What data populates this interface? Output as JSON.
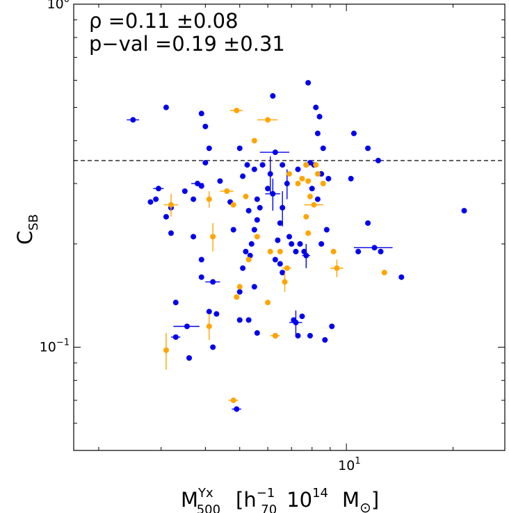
{
  "chart_data": {
    "type": "scatter",
    "title": "",
    "xlabel": {
      "base": "M",
      "sup": "Yx",
      "sub": "500",
      "unit_open": "[h",
      "h_sup": "−1",
      "h_sub": "70",
      "factor": "10",
      "factor_sup": "14",
      "unit_sym": "M",
      "unit_sub": "⊙",
      "unit_close": "]"
    },
    "ylabel": {
      "base": "C",
      "sub": "SB"
    },
    "x_scale": "log",
    "y_scale": "log",
    "xlim": [
      1.7,
      28
    ],
    "ylim": [
      0.05,
      1.0
    ],
    "x_ticks": [
      {
        "value": 10,
        "base": "10",
        "exp": "1"
      }
    ],
    "y_ticks": [
      {
        "value": 0.1,
        "base": "10",
        "exp": "−1"
      },
      {
        "value": 1.0,
        "base": "10",
        "exp": "0"
      }
    ],
    "reference_line": {
      "y": 0.35,
      "style": "dashed"
    },
    "annotations": [
      "ρ =0.11 ±0.08",
      "p−val =0.19 ±0.31"
    ],
    "series": [
      {
        "color": "#0000ee",
        "points": [
          {
            "x": 2.5,
            "y": 0.46,
            "xerr": 0.1
          },
          {
            "x": 3.1,
            "y": 0.5
          },
          {
            "x": 3.9,
            "y": 0.48
          },
          {
            "x": 4.0,
            "y": 0.44
          },
          {
            "x": 4.1,
            "y": 0.38
          },
          {
            "x": 4.0,
            "y": 0.345
          },
          {
            "x": 4.4,
            "y": 0.305
          },
          {
            "x": 2.95,
            "y": 0.29,
            "xerr": 0.1
          },
          {
            "x": 2.9,
            "y": 0.27
          },
          {
            "x": 2.8,
            "y": 0.265
          },
          {
            "x": 3.1,
            "y": 0.24
          },
          {
            "x": 3.2,
            "y": 0.255
          },
          {
            "x": 3.5,
            "y": 0.285
          },
          {
            "x": 3.8,
            "y": 0.3,
            "xerr": 0.15
          },
          {
            "x": 3.9,
            "y": 0.295
          },
          {
            "x": 3.7,
            "y": 0.27
          },
          {
            "x": 3.2,
            "y": 0.215
          },
          {
            "x": 3.7,
            "y": 0.21
          },
          {
            "x": 3.3,
            "y": 0.135
          },
          {
            "x": 3.55,
            "y": 0.115,
            "xerr": 0.3
          },
          {
            "x": 3.3,
            "y": 0.107,
            "xerr": 0.1
          },
          {
            "x": 3.6,
            "y": 0.093
          },
          {
            "x": 3.9,
            "y": 0.18
          },
          {
            "x": 3.9,
            "y": 0.16
          },
          {
            "x": 4.2,
            "y": 0.155,
            "xerr": 0.2
          },
          {
            "x": 4.1,
            "y": 0.127
          },
          {
            "x": 4.3,
            "y": 0.125
          },
          {
            "x": 4.2,
            "y": 0.1
          },
          {
            "x": 4.7,
            "y": 0.265
          },
          {
            "x": 4.8,
            "y": 0.22
          },
          {
            "x": 5.0,
            "y": 0.38
          },
          {
            "x": 5.1,
            "y": 0.315
          },
          {
            "x": 5.25,
            "y": 0.34
          },
          {
            "x": 5.5,
            "y": 0.33
          },
          {
            "x": 5.3,
            "y": 0.25
          },
          {
            "x": 5.6,
            "y": 0.27
          },
          {
            "x": 5.7,
            "y": 0.255
          },
          {
            "x": 5.6,
            "y": 0.235
          },
          {
            "x": 5.5,
            "y": 0.22
          },
          {
            "x": 5.4,
            "y": 0.2
          },
          {
            "x": 5.2,
            "y": 0.19
          },
          {
            "x": 5.35,
            "y": 0.185
          },
          {
            "x": 5.1,
            "y": 0.17
          },
          {
            "x": 5.0,
            "y": 0.145
          },
          {
            "x": 5.0,
            "y": 0.12
          },
          {
            "x": 5.5,
            "y": 0.15
          },
          {
            "x": 5.3,
            "y": 0.12
          },
          {
            "x": 5.6,
            "y": 0.11
          },
          {
            "x": 4.9,
            "y": 0.066,
            "xerr": 0.15
          },
          {
            "x": 6.2,
            "y": 0.54
          },
          {
            "x": 6.3,
            "y": 0.37,
            "xerr": 0.6
          },
          {
            "x": 5.8,
            "y": 0.34
          },
          {
            "x": 6.1,
            "y": 0.32,
            "yerr": 0.04
          },
          {
            "x": 6.0,
            "y": 0.29
          },
          {
            "x": 6.2,
            "y": 0.28,
            "xerr": 0.3,
            "yerr": 0.03
          },
          {
            "x": 6.6,
            "y": 0.255,
            "yerr": 0.03
          },
          {
            "x": 6.8,
            "y": 0.3,
            "yerr": 0.03
          },
          {
            "x": 6.6,
            "y": 0.34
          },
          {
            "x": 6.5,
            "y": 0.23
          },
          {
            "x": 6.4,
            "y": 0.205
          },
          {
            "x": 6.3,
            "y": 0.18
          },
          {
            "x": 6.5,
            "y": 0.175
          },
          {
            "x": 6.6,
            "y": 0.165
          },
          {
            "x": 6.9,
            "y": 0.21
          },
          {
            "x": 7.0,
            "y": 0.2
          },
          {
            "x": 7.2,
            "y": 0.19
          },
          {
            "x": 7.4,
            "y": 0.2
          },
          {
            "x": 7.6,
            "y": 0.19
          },
          {
            "x": 7.7,
            "y": 0.185,
            "xerr": 0.2,
            "yerr": 0.015
          },
          {
            "x": 7.1,
            "y": 0.12
          },
          {
            "x": 7.2,
            "y": 0.118,
            "xerr": 0.3,
            "yerr": 0.01
          },
          {
            "x": 7.5,
            "y": 0.123
          },
          {
            "x": 6.3,
            "y": 0.108
          },
          {
            "x": 7.3,
            "y": 0.108
          },
          {
            "x": 7.9,
            "y": 0.108
          },
          {
            "x": 7.8,
            "y": 0.59
          },
          {
            "x": 8.2,
            "y": 0.5
          },
          {
            "x": 8.4,
            "y": 0.47
          },
          {
            "x": 8.3,
            "y": 0.42
          },
          {
            "x": 8.6,
            "y": 0.38
          },
          {
            "x": 7.9,
            "y": 0.345
          },
          {
            "x": 8.1,
            "y": 0.34
          },
          {
            "x": 7.7,
            "y": 0.34
          },
          {
            "x": 7.3,
            "y": 0.33
          },
          {
            "x": 8.5,
            "y": 0.32
          },
          {
            "x": 8.9,
            "y": 0.31
          },
          {
            "x": 8.0,
            "y": 0.29
          },
          {
            "x": 8.3,
            "y": 0.27
          },
          {
            "x": 8.8,
            "y": 0.22
          },
          {
            "x": 8.5,
            "y": 0.2
          },
          {
            "x": 8.7,
            "y": 0.105
          },
          {
            "x": 9.1,
            "y": 0.115
          },
          {
            "x": 10.3,
            "y": 0.31
          },
          {
            "x": 10.5,
            "y": 0.42
          },
          {
            "x": 11.5,
            "y": 0.38
          },
          {
            "x": 12.3,
            "y": 0.35
          },
          {
            "x": 11.5,
            "y": 0.23
          },
          {
            "x": 12.0,
            "y": 0.195,
            "xerr": 1.5
          },
          {
            "x": 10.8,
            "y": 0.19
          },
          {
            "x": 12.5,
            "y": 0.19
          },
          {
            "x": 14.3,
            "y": 0.16
          },
          {
            "x": 21.5,
            "y": 0.25
          }
        ]
      },
      {
        "color": "#ffa500",
        "points": [
          {
            "x": 4.9,
            "y": 0.49,
            "xerr": 0.2
          },
          {
            "x": 6.0,
            "y": 0.46,
            "xerr": 0.4
          },
          {
            "x": 5.5,
            "y": 0.4
          },
          {
            "x": 3.2,
            "y": 0.26,
            "xerr": 0.15,
            "yerr": 0.02
          },
          {
            "x": 4.6,
            "y": 0.285,
            "xerr": 0.2
          },
          {
            "x": 4.1,
            "y": 0.27,
            "yerr": 0.015
          },
          {
            "x": 4.8,
            "y": 0.26
          },
          {
            "x": 5.2,
            "y": 0.275
          },
          {
            "x": 4.2,
            "y": 0.21,
            "yerr": 0.02
          },
          {
            "x": 4.1,
            "y": 0.115,
            "yerr": 0.01
          },
          {
            "x": 3.1,
            "y": 0.098,
            "yerr": 0.012
          },
          {
            "x": 4.8,
            "y": 0.07,
            "xerr": 0.15
          },
          {
            "x": 5.0,
            "y": 0.15
          },
          {
            "x": 4.9,
            "y": 0.14
          },
          {
            "x": 5.6,
            "y": 0.21
          },
          {
            "x": 5.3,
            "y": 0.18
          },
          {
            "x": 6.0,
            "y": 0.135
          },
          {
            "x": 6.3,
            "y": 0.108,
            "xerr": 0.2
          },
          {
            "x": 6.1,
            "y": 0.19
          },
          {
            "x": 6.5,
            "y": 0.19
          },
          {
            "x": 6.8,
            "y": 0.17,
            "xerr": 0.2
          },
          {
            "x": 6.7,
            "y": 0.155,
            "yerr": 0.01
          },
          {
            "x": 6.9,
            "y": 0.32
          },
          {
            "x": 7.3,
            "y": 0.3
          },
          {
            "x": 7.5,
            "y": 0.31
          },
          {
            "x": 7.7,
            "y": 0.34
          },
          {
            "x": 7.8,
            "y": 0.305
          },
          {
            "x": 8.2,
            "y": 0.34
          },
          {
            "x": 7.9,
            "y": 0.275
          },
          {
            "x": 8.1,
            "y": 0.26,
            "xerr": 0.5
          },
          {
            "x": 7.7,
            "y": 0.24
          },
          {
            "x": 7.8,
            "y": 0.215
          },
          {
            "x": 8.6,
            "y": 0.3
          },
          {
            "x": 8.3,
            "y": 0.32
          },
          {
            "x": 9.2,
            "y": 0.19
          },
          {
            "x": 9.4,
            "y": 0.17,
            "xerr": 0.4,
            "yerr": 0.01
          },
          {
            "x": 12.8,
            "y": 0.165
          }
        ]
      }
    ]
  }
}
